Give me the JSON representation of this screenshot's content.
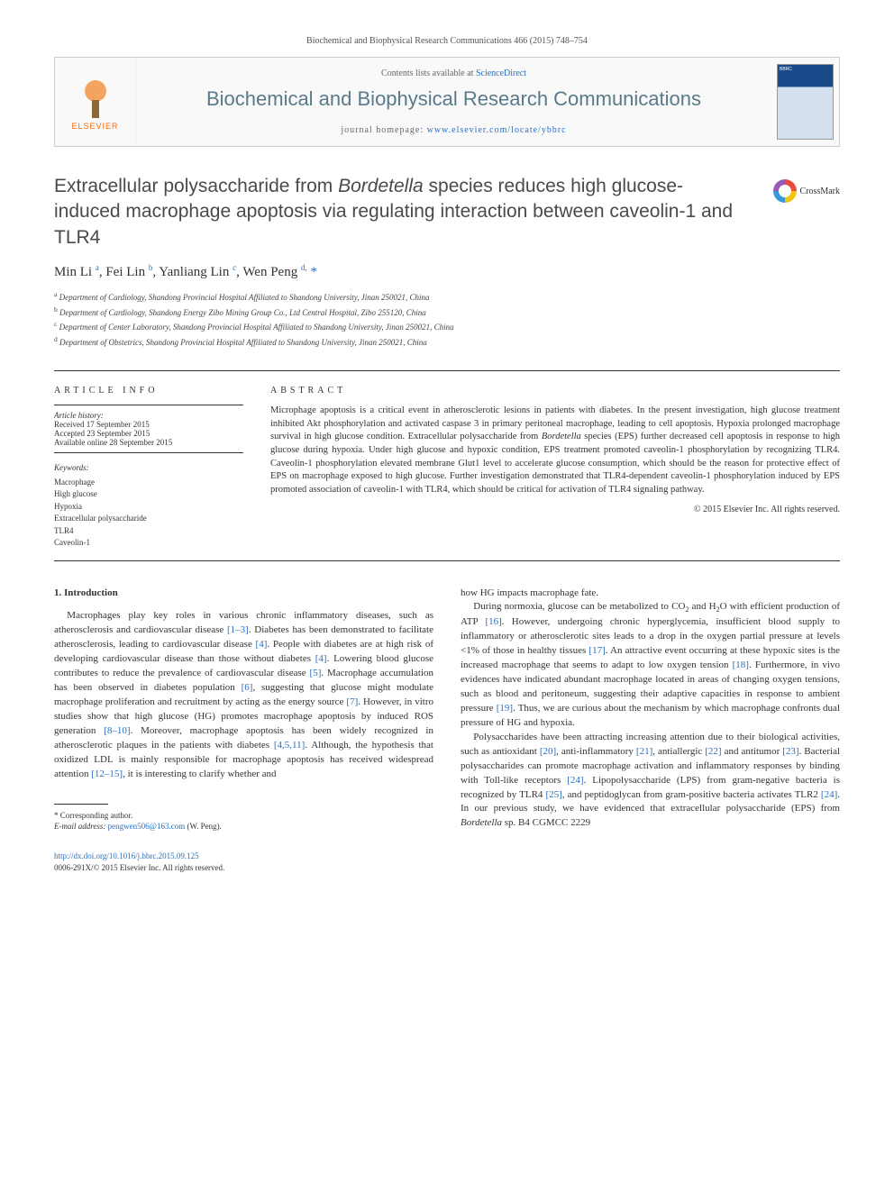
{
  "header": {
    "citation": "Biochemical and Biophysical Research Communications 466 (2015) 748–754",
    "publisher_label": "ELSEVIER",
    "contents_prefix": "Contents lists available at ",
    "contents_link": "ScienceDirect",
    "journal_name": "Biochemical and Biophysical Research Communications",
    "homepage_prefix": "journal homepage: ",
    "homepage_url": "www.elsevier.com/locate/ybbrc",
    "cover_badge": "BBRC"
  },
  "crossmark_label": "CrossMark",
  "title_html": "Extracellular polysaccharide from <em>Bordetella</em> species reduces high glucose-induced macrophage apoptosis via regulating interaction between caveolin-1 and TLR4",
  "authors_html": "Min Li <sup>a</sup>, Fei Lin <sup>b</sup>, Yanliang Lin <sup>c</sup>, Wen Peng <sup>d,</sup> <span class='ast'>*</span>",
  "affiliations": [
    "a Department of Cardiology, Shandong Provincial Hospital Affiliated to Shandong University, Jinan 250021, China",
    "b Department of Cardiology, Shandong Energy Zibo Mining Group Co., Ltd Central Hospital, Zibo 255120, China",
    "c Department of Center Laboratory, Shandong Provincial Hospital Affiliated to Shandong University, Jinan 250021, China",
    "d Department of Obstetrics, Shandong Provincial Hospital Affiliated to Shandong University, Jinan 250021, China"
  ],
  "info": {
    "heading": "ARTICLE INFO",
    "history_label": "Article history:",
    "history": [
      "Received 17 September 2015",
      "Accepted 23 September 2015",
      "Available online 28 September 2015"
    ],
    "keywords_label": "Keywords:",
    "keywords": [
      "Macrophage",
      "High glucose",
      "Hypoxia",
      "Extracellular polysaccharide",
      "TLR4",
      "Caveolin-1"
    ]
  },
  "abstract": {
    "heading": "ABSTRACT",
    "text_html": "Microphage apoptosis is a critical event in atherosclerotic lesions in patients with diabetes. In the present investigation, high glucose treatment inhibited Akt phosphorylation and activated caspase 3 in primary peritoneal macrophage, leading to cell apoptosis. Hypoxia prolonged macrophage survival in high glucose condition. Extracellular polysaccharide from <em>Bordetella</em> species (EPS) further decreased cell apoptosis in response to high glucose during hypoxia. Under high glucose and hypoxic condition, EPS treatment promoted caveolin-1 phosphorylation by recognizing TLR4. Caveolin-1 phosphorylation elevated membrane Glut1 level to accelerate glucose consumption, which should be the reason for protective effect of EPS on macrophage exposed to high glucose. Further investigation demonstrated that TLR4-dependent caveolin-1 phosphorylation induced by EPS promoted association of caveolin-1 with TLR4, which should be critical for activation of TLR4 signaling pathway.",
    "copyright": "© 2015 Elsevier Inc. All rights reserved."
  },
  "body": {
    "section_heading": "1. Introduction",
    "col1_html": "Macrophages play key roles in various chronic inflammatory diseases, such as atherosclerosis and cardiovascular disease <a>[1–3]</a>. Diabetes has been demonstrated to facilitate atherosclerosis, leading to cardiovascular disease <a>[4]</a>. People with diabetes are at high risk of developing cardiovascular disease than those without diabetes <a>[4]</a>. Lowering blood glucose contributes to reduce the prevalence of cardiovascular disease <a>[5]</a>. Macrophage accumulation has been observed in diabetes population <a>[6]</a>, suggesting that glucose might modulate macrophage proliferation and recruitment by acting as the energy source <a>[7]</a>. However, in vitro studies show that high glucose (HG) promotes macrophage apoptosis by induced ROS generation <a>[8–10]</a>. Moreover, macrophage apoptosis has been widely recognized in atherosclerotic plaques in the patients with diabetes <a>[4,5,11]</a>. Although, the hypothesis that oxidized LDL is mainly responsible for macrophage apoptosis has received widespread attention <a>[12–15]</a>, it is interesting to clarify whether and",
    "col2_p1": "how HG impacts macrophage fate.",
    "col2_p2_html": "During normoxia, glucose can be metabolized to CO<sub>2</sub> and H<sub>2</sub>O with efficient production of ATP <a>[16]</a>. However, undergoing chronic hyperglycemia, insufficient blood supply to inflammatory or atherosclerotic sites leads to a drop in the oxygen partial pressure at levels &lt;1% of those in healthy tissues <a>[17]</a>. An attractive event occurring at these hypoxic sites is the increased macrophage that seems to adapt to low oxygen tension <a>[18]</a>. Furthermore, in vivo evidences have indicated abundant macrophage located in areas of changing oxygen tensions, such as blood and peritoneum, suggesting their adaptive capacities in response to ambient pressure <a>[19]</a>. Thus, we are curious about the mechanism by which macrophage confronts dual pressure of HG and hypoxia.",
    "col2_p3_html": "Polysaccharides have been attracting increasing attention due to their biological activities, such as antioxidant <a>[20]</a>, anti-inflammatory <a>[21]</a>, antiallergic <a>[22]</a> and antitumor <a>[23]</a>. Bacterial polysaccharides can promote macrophage activation and inflammatory responses by binding with Toll-like receptors <a>[24]</a>. Lipopolysaccharide (LPS) from gram-negative bacteria is recognized by TLR4 <a>[25]</a>, and peptidoglycan from gram-positive bacteria activates TLR2 <a>[24]</a>. In our previous study, we have evidenced that extracellular polysaccharide (EPS) from <em>Bordetella</em> sp. B4 CGMCC 2229"
  },
  "footnote": {
    "corresponding": "* Corresponding author.",
    "email_label": "E-mail address:",
    "email": "pengwen506@163.com",
    "email_suffix": "(W. Peng)."
  },
  "footer": {
    "doi": "http://dx.doi.org/10.1016/j.bbrc.2015.09.125",
    "issn_line": "0006-291X/© 2015 Elsevier Inc. All rights reserved."
  }
}
